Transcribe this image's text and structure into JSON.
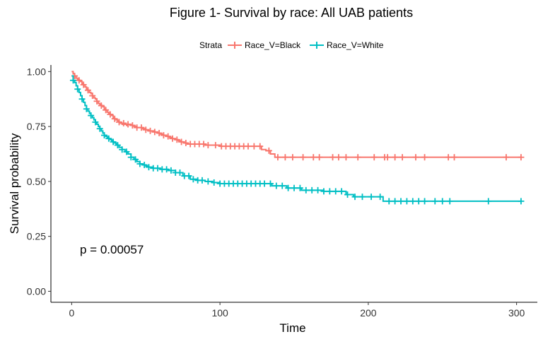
{
  "chart_data": {
    "type": "line",
    "title": "Figure 1- Survival by race: All UAB patients",
    "xlabel": "Time",
    "ylabel": "Survival probability",
    "xlim": [
      -14,
      314
    ],
    "ylim": [
      -0.05,
      1.03
    ],
    "x_ticks": [
      0,
      100,
      200,
      300
    ],
    "y_ticks": [
      0.0,
      0.25,
      0.5,
      0.75,
      1.0
    ],
    "x_tick_labels": [
      "0",
      "100",
      "200",
      "300"
    ],
    "y_tick_labels": [
      "0.00",
      "0.25",
      "0.50",
      "0.75",
      "1.00"
    ],
    "grid": false,
    "legend": {
      "placement": "top",
      "title": "Strata",
      "entries": [
        "Race_V=Black",
        "Race_V=White"
      ]
    },
    "annotation": "p = 0.00057",
    "series": [
      {
        "name": "Race_V=Black",
        "color": "#f8766d",
        "step": true,
        "x": [
          0,
          1,
          2,
          3,
          4,
          5,
          6,
          7,
          8,
          9,
          10,
          11,
          12,
          13,
          14,
          15,
          16,
          17,
          18,
          19,
          20,
          21,
          22,
          23,
          24,
          25,
          26,
          27,
          28,
          29,
          30,
          31,
          32,
          33,
          34,
          35,
          36,
          37,
          38,
          40,
          42,
          44,
          46,
          48,
          50,
          52,
          54,
          56,
          58,
          60,
          62,
          64,
          66,
          68,
          70,
          72,
          74,
          76,
          78,
          80,
          85,
          90,
          95,
          100,
          105,
          110,
          115,
          120,
          125,
          128,
          131,
          134,
          137,
          303
        ],
        "y": [
          1.0,
          0.99,
          0.98,
          0.97,
          0.965,
          0.96,
          0.955,
          0.945,
          0.94,
          0.93,
          0.92,
          0.915,
          0.905,
          0.9,
          0.89,
          0.88,
          0.875,
          0.865,
          0.855,
          0.85,
          0.845,
          0.84,
          0.83,
          0.825,
          0.815,
          0.81,
          0.805,
          0.8,
          0.79,
          0.785,
          0.78,
          0.775,
          0.77,
          0.765,
          0.76,
          0.765,
          0.76,
          0.755,
          0.76,
          0.755,
          0.75,
          0.745,
          0.745,
          0.74,
          0.735,
          0.73,
          0.73,
          0.725,
          0.72,
          0.715,
          0.71,
          0.705,
          0.7,
          0.695,
          0.69,
          0.685,
          0.68,
          0.675,
          0.67,
          0.67,
          0.67,
          0.665,
          0.665,
          0.66,
          0.66,
          0.66,
          0.66,
          0.66,
          0.66,
          0.645,
          0.64,
          0.625,
          0.61,
          0.61
        ],
        "censored_x": [
          2,
          5,
          8,
          11,
          14,
          17,
          20,
          23,
          26,
          29,
          32,
          35,
          38,
          41,
          44,
          47,
          50,
          53,
          56,
          59,
          62,
          65,
          68,
          71,
          74,
          77,
          80,
          83,
          86,
          89,
          92,
          97,
          101,
          104,
          107,
          110,
          113,
          116,
          119,
          123,
          127,
          133,
          139,
          144,
          149,
          156,
          163,
          167,
          176,
          180,
          185,
          193,
          204,
          211,
          213,
          218,
          223,
          232,
          238,
          254,
          258,
          293,
          303
        ]
      },
      {
        "name": "Race_V=White",
        "color": "#00bfc4",
        "step": true,
        "x": [
          0,
          1,
          2,
          3,
          4,
          5,
          6,
          7,
          8,
          9,
          10,
          11,
          12,
          13,
          14,
          15,
          16,
          17,
          18,
          19,
          20,
          21,
          22,
          23,
          24,
          25,
          26,
          27,
          28,
          29,
          30,
          31,
          32,
          34,
          36,
          38,
          40,
          42,
          44,
          46,
          48,
          50,
          52,
          55,
          60,
          65,
          70,
          75,
          80,
          85,
          90,
          95,
          100,
          110,
          120,
          135,
          145,
          155,
          170,
          185,
          190,
          210,
          303
        ],
        "y": [
          0.98,
          0.96,
          0.95,
          0.935,
          0.92,
          0.905,
          0.89,
          0.875,
          0.86,
          0.845,
          0.83,
          0.82,
          0.81,
          0.8,
          0.79,
          0.78,
          0.77,
          0.76,
          0.75,
          0.74,
          0.73,
          0.72,
          0.71,
          0.705,
          0.7,
          0.695,
          0.69,
          0.685,
          0.68,
          0.675,
          0.67,
          0.665,
          0.655,
          0.645,
          0.635,
          0.625,
          0.61,
          0.6,
          0.59,
          0.58,
          0.575,
          0.57,
          0.565,
          0.56,
          0.555,
          0.55,
          0.54,
          0.525,
          0.51,
          0.505,
          0.5,
          0.495,
          0.49,
          0.49,
          0.49,
          0.48,
          0.47,
          0.46,
          0.455,
          0.44,
          0.43,
          0.41,
          0.41
        ],
        "censored_x": [
          1,
          4,
          7,
          10,
          13,
          16,
          19,
          22,
          25,
          28,
          31,
          34,
          37,
          40,
          43,
          46,
          49,
          52,
          55,
          58,
          61,
          64,
          67,
          70,
          73,
          76,
          79,
          82,
          85,
          88,
          92,
          96,
          100,
          103,
          106,
          109,
          112,
          115,
          118,
          121,
          124,
          127,
          130,
          134,
          138,
          142,
          146,
          150,
          154,
          158,
          162,
          166,
          170,
          174,
          178,
          182,
          186,
          191,
          196,
          202,
          208,
          214,
          218,
          222,
          226,
          230,
          234,
          238,
          245,
          250,
          255,
          281,
          303
        ]
      }
    ]
  }
}
